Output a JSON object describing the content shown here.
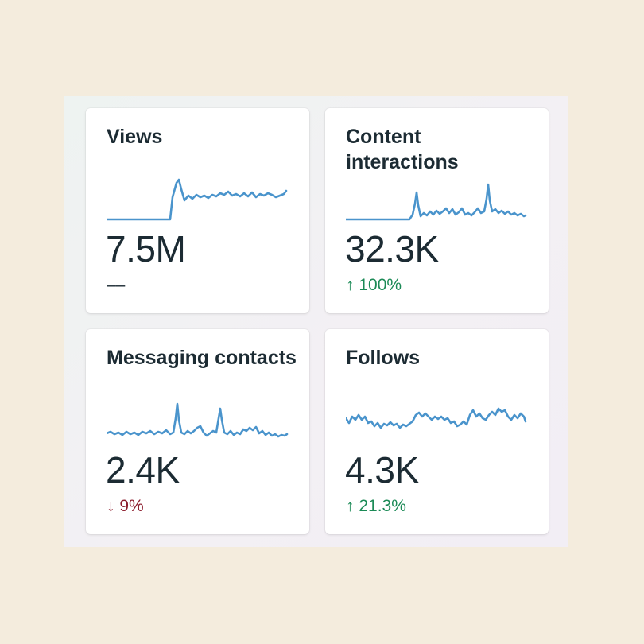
{
  "cards": [
    {
      "title": "Views",
      "value": "7.5M",
      "change": "––",
      "direction": "none",
      "sparkline_shape": "flat-then-step-up"
    },
    {
      "title": "Content interactions",
      "value": "32.3K",
      "change": "↑ 100%",
      "direction": "up",
      "sparkline_shape": "flat-then-spikes"
    },
    {
      "title": "Messaging contacts",
      "value": "2.4K",
      "change": "↓ 9%",
      "direction": "down",
      "sparkline_shape": "noisy-with-two-spikes"
    },
    {
      "title": "Follows",
      "value": "4.3K",
      "change": "↑ 21.3%",
      "direction": "up",
      "sparkline_shape": "noisy-wave"
    }
  ],
  "colors": {
    "background": "#f4ecdd",
    "card": "#ffffff",
    "text": "#1c2b33",
    "sparkline": "#4a94cc",
    "positive": "#1b8a56",
    "negative": "#8b1c2c"
  }
}
